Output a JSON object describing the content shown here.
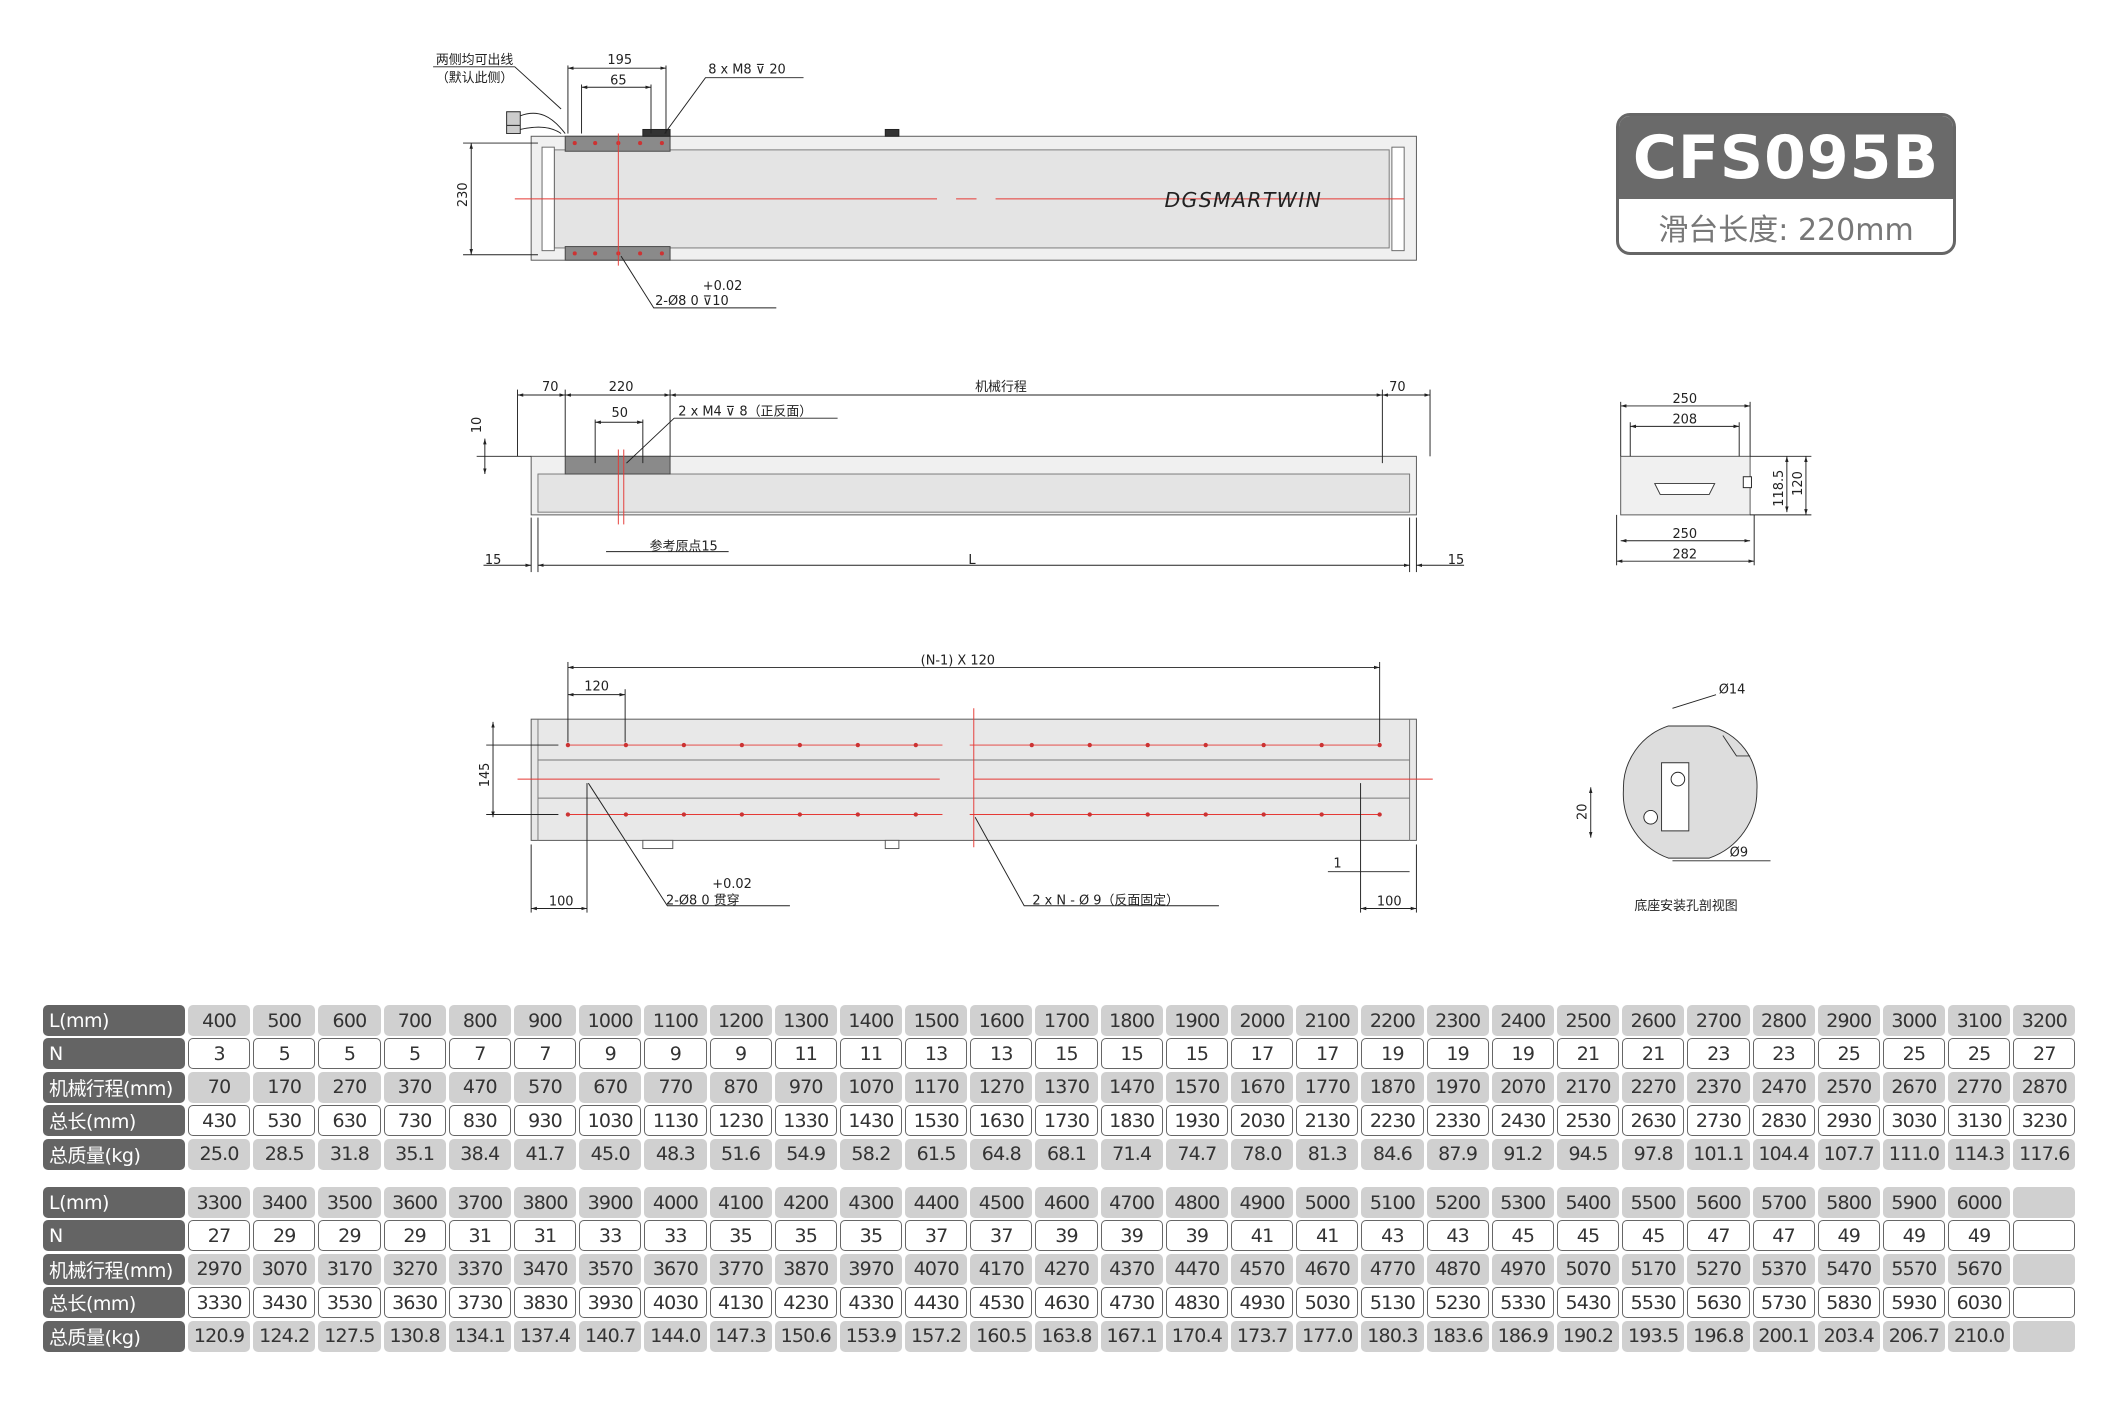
{
  "badge": {
    "model": "CFS095B",
    "slide_length": "滑台长度: 220mm"
  },
  "top_view": {
    "cable_note1": "两侧均可出线",
    "cable_note2": "（默认此侧）",
    "dim_195": "195",
    "dim_65": "65",
    "thread_note": "8 x M8 ⊽ 20",
    "dim_230": "230",
    "tol": "+0.02",
    "pin_note": "2-Ø8  0    ⊽10",
    "logo": "DGSMARTWIN"
  },
  "side_view": {
    "dim_70_left": "70",
    "dim_220": "220",
    "stroke": "机械行程",
    "dim_70_right": "70",
    "dim_10": "10",
    "dim_50": "50",
    "thread_note": "2 x M4 ⊽ 8（正反面）",
    "origin_note": "参考原点15",
    "dim_15_left": "15",
    "dim_L": "L",
    "dim_15_right": "15"
  },
  "end_view": {
    "w250_top": "250",
    "w208": "208",
    "h118": "118.5",
    "h120": "120",
    "w250_bot": "250",
    "w282": "282"
  },
  "bottom_view": {
    "pitch": "(N-1) X 120",
    "dim_120": "120",
    "dim_145": "145",
    "tol": "+0.02",
    "pin_note": "2-Ø8  0  贯穿",
    "hole_note": "2 x N - Ø 9（反面固定）",
    "dim_1": "1",
    "dim_100_left": "100",
    "dim_100_right": "100"
  },
  "section_view": {
    "d14": "Ø14",
    "dim_20": "20",
    "d9": "Ø9",
    "caption": "底座安装孔剖视图"
  },
  "colors": {
    "header": "#646464",
    "shade": "#d0d0d0",
    "centerline": "#e53935"
  },
  "tables": [
    {
      "rows": [
        {
          "label": "L(mm)",
          "style": "shade",
          "values": [
            "400",
            "500",
            "600",
            "700",
            "800",
            "900",
            "1000",
            "1100",
            "1200",
            "1300",
            "1400",
            "1500",
            "1600",
            "1700",
            "1800",
            "1900",
            "2000",
            "2100",
            "2200",
            "2300",
            "2400",
            "2500",
            "2600",
            "2700",
            "2800",
            "2900",
            "3000",
            "3100",
            "3200"
          ]
        },
        {
          "label": "N",
          "style": "plain",
          "values": [
            "3",
            "5",
            "5",
            "5",
            "7",
            "7",
            "9",
            "9",
            "9",
            "11",
            "11",
            "13",
            "13",
            "15",
            "15",
            "15",
            "17",
            "17",
            "19",
            "19",
            "19",
            "21",
            "21",
            "23",
            "23",
            "25",
            "25",
            "25",
            "27"
          ]
        },
        {
          "label": "机械行程(mm)",
          "style": "shade",
          "values": [
            "70",
            "170",
            "270",
            "370",
            "470",
            "570",
            "670",
            "770",
            "870",
            "970",
            "1070",
            "1170",
            "1270",
            "1370",
            "1470",
            "1570",
            "1670",
            "1770",
            "1870",
            "1970",
            "2070",
            "2170",
            "2270",
            "2370",
            "2470",
            "2570",
            "2670",
            "2770",
            "2870"
          ]
        },
        {
          "label": "总长(mm)",
          "style": "plain",
          "values": [
            "430",
            "530",
            "630",
            "730",
            "830",
            "930",
            "1030",
            "1130",
            "1230",
            "1330",
            "1430",
            "1530",
            "1630",
            "1730",
            "1830",
            "1930",
            "2030",
            "2130",
            "2230",
            "2330",
            "2430",
            "2530",
            "2630",
            "2730",
            "2830",
            "2930",
            "3030",
            "3130",
            "3230"
          ]
        },
        {
          "label": "总质量(kg)",
          "style": "shade",
          "values": [
            "25.0",
            "28.5",
            "31.8",
            "35.1",
            "38.4",
            "41.7",
            "45.0",
            "48.3",
            "51.6",
            "54.9",
            "58.2",
            "61.5",
            "64.8",
            "68.1",
            "71.4",
            "74.7",
            "78.0",
            "81.3",
            "84.6",
            "87.9",
            "91.2",
            "94.5",
            "97.8",
            "101.1",
            "104.4",
            "107.7",
            "111.0",
            "114.3",
            "117.6"
          ]
        }
      ]
    },
    {
      "rows": [
        {
          "label": "L(mm)",
          "style": "shade",
          "values": [
            "3300",
            "3400",
            "3500",
            "3600",
            "3700",
            "3800",
            "3900",
            "4000",
            "4100",
            "4200",
            "4300",
            "4400",
            "4500",
            "4600",
            "4700",
            "4800",
            "4900",
            "5000",
            "5100",
            "5200",
            "5300",
            "5400",
            "5500",
            "5600",
            "5700",
            "5800",
            "5900",
            "6000",
            ""
          ]
        },
        {
          "label": "N",
          "style": "plain",
          "values": [
            "27",
            "29",
            "29",
            "29",
            "31",
            "31",
            "33",
            "33",
            "35",
            "35",
            "35",
            "37",
            "37",
            "39",
            "39",
            "39",
            "41",
            "41",
            "43",
            "43",
            "45",
            "45",
            "45",
            "47",
            "47",
            "49",
            "49",
            "49",
            ""
          ]
        },
        {
          "label": "机械行程(mm)",
          "style": "shade",
          "values": [
            "2970",
            "3070",
            "3170",
            "3270",
            "3370",
            "3470",
            "3570",
            "3670",
            "3770",
            "3870",
            "3970",
            "4070",
            "4170",
            "4270",
            "4370",
            "4470",
            "4570",
            "4670",
            "4770",
            "4870",
            "4970",
            "5070",
            "5170",
            "5270",
            "5370",
            "5470",
            "5570",
            "5670",
            ""
          ]
        },
        {
          "label": "总长(mm)",
          "style": "plain",
          "values": [
            "3330",
            "3430",
            "3530",
            "3630",
            "3730",
            "3830",
            "3930",
            "4030",
            "4130",
            "4230",
            "4330",
            "4430",
            "4530",
            "4630",
            "4730",
            "4830",
            "4930",
            "5030",
            "5130",
            "5230",
            "5330",
            "5430",
            "5530",
            "5630",
            "5730",
            "5830",
            "5930",
            "6030",
            ""
          ]
        },
        {
          "label": "总质量(kg)",
          "style": "shade",
          "values": [
            "120.9",
            "124.2",
            "127.5",
            "130.8",
            "134.1",
            "137.4",
            "140.7",
            "144.0",
            "147.3",
            "150.6",
            "153.9",
            "157.2",
            "160.5",
            "163.8",
            "167.1",
            "170.4",
            "173.7",
            "177.0",
            "180.3",
            "183.6",
            "186.9",
            "190.2",
            "193.5",
            "196.8",
            "200.1",
            "203.4",
            "206.7",
            "210.0",
            ""
          ]
        }
      ]
    }
  ]
}
